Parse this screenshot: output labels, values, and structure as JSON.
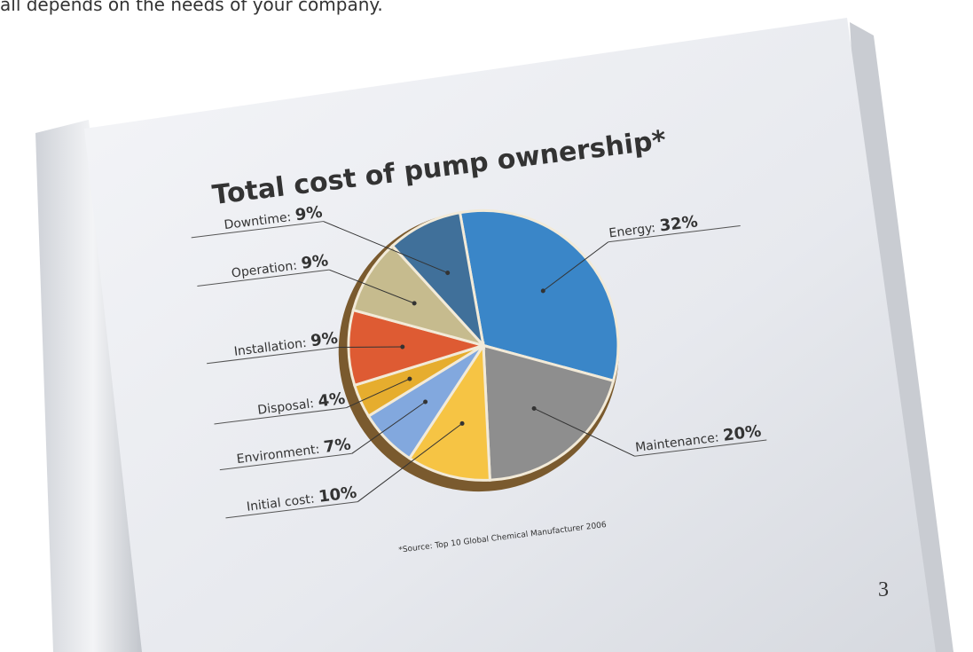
{
  "header_text": "all depends on the needs of your company.",
  "page_number": 3,
  "chart_data": {
    "type": "pie",
    "title": "Total cost of pump ownership*",
    "note": "*Source: Top 10 Global Chemical Manufacturer 2006",
    "categories": [
      "Energy:",
      "Maintenance:",
      "Initial cost:",
      "Environment:",
      "Disposal:",
      "Installation:",
      "Operation:",
      "Downtime:"
    ],
    "values": [
      32,
      20,
      10,
      7,
      4,
      9,
      9,
      9
    ],
    "value_labels": [
      "32%",
      "20%",
      "10%",
      "7%",
      "4%",
      "9%",
      "9%",
      "9%"
    ],
    "colors": [
      "#3a86c8",
      "#8e8e8e",
      "#f6c444",
      "#82a8de",
      "#e6ad2e",
      "#de5b33",
      "#c6bb8e",
      "#40709a"
    ]
  }
}
